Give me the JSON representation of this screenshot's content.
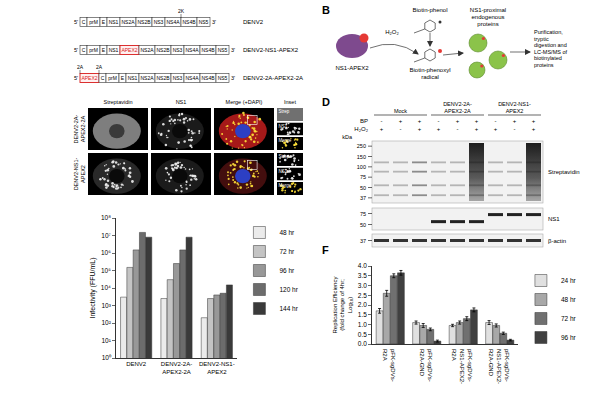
{
  "panels": {
    "A": {
      "ends": [
        "5'",
        "3'"
      ],
      "highlight": "APEX2",
      "constructs": [
        {
          "name": "DENV2",
          "segments": [
            "C",
            "prM",
            "E",
            "NS1",
            "NS2A",
            "NS2B",
            "NS3",
            "NS4A",
            "NS4B",
            "NS5"
          ],
          "marks": [
            {
              "label": "2K",
              "after": "NS4A"
            }
          ]
        },
        {
          "name": "DENV2-NS1-APEX2",
          "segments": [
            "C",
            "prM",
            "E",
            "NS1",
            "APEX2",
            "NS2A",
            "NS2B",
            "NS3",
            "NS4A",
            "NS4B",
            "NS5"
          ]
        },
        {
          "name": "DENV2-2A-APEX2-2A",
          "segments": [
            "APEX2",
            "C",
            "prM",
            "E",
            "NS1",
            "NS2A",
            "NS2B",
            "NS3",
            "NS4A",
            "NS4B",
            "NS5"
          ],
          "marks": [
            {
              "label": "2A",
              "before": "APEX2"
            },
            {
              "label": "2A",
              "after": "APEX2"
            }
          ]
        }
      ]
    },
    "B": {
      "letter": "B",
      "enzyme": "NS1-APEX2",
      "oxidant": "H₂O₂",
      "substrate": "Biotin-phenol",
      "radical": "Biotin-phenoxyl radical",
      "targets": "NS1-proximal endogenous proteins",
      "workflow": "Purification, tryptic digestion and LC-MS/MS of biotinylated proteins"
    },
    "C": {
      "columns": [
        "Streptavidin",
        "NS1",
        "Merge (+DAPI)",
        "Inset"
      ],
      "rows": [
        "DENV2-2A-APEX2-2A",
        "DENV2-NS1-APEX2"
      ],
      "inset_labels": [
        "Strep",
        "NS1",
        "Merge"
      ]
    },
    "D": {
      "letter": "D",
      "groups": [
        "Mock",
        "DENV2-2A-APEX2-2A",
        "DENV2-NS1-APEX2"
      ],
      "treatments": [
        {
          "label": "BP",
          "signs": [
            "-",
            "+",
            "+",
            "-",
            "+",
            "+",
            "-",
            "+",
            "+"
          ]
        },
        {
          "label": "H₂O₂",
          "signs": [
            "+",
            "-",
            "+",
            "+",
            "-",
            "+",
            "+",
            "-",
            "+"
          ]
        }
      ],
      "unit": "kDa",
      "blots": [
        {
          "label": "Streptavidin",
          "markers": [
            250,
            150,
            100,
            75,
            50,
            37
          ]
        },
        {
          "label": "NS1",
          "markers": [
            75,
            50
          ]
        },
        {
          "label": "β-actin",
          "markers": [
            37
          ]
        }
      ]
    },
    "F": {
      "letter": "F"
    }
  },
  "chart_data": [
    {
      "type": "bar",
      "ylabel": "Infectivity (FFU/mL)",
      "categories": [
        "DENV2",
        "DENV2-2A-APEX2-2A",
        "DENV2-NS1-APEX2"
      ],
      "series": [
        {
          "name": "48 hr",
          "color": "#ebebeb",
          "values": [
            3000,
            2500,
            200
          ]
        },
        {
          "name": "72 hr",
          "color": "#c4c4c4",
          "values": [
            150000,
            30000,
            2500
          ]
        },
        {
          "name": "96 hr",
          "color": "#989898",
          "values": [
            1500000,
            250000,
            4000
          ]
        },
        {
          "name": "120 hr",
          "color": "#6c6c6c",
          "values": [
            15000000,
            1500000,
            5000
          ]
        },
        {
          "name": "144 hr",
          "color": "#3a3a3a",
          "values": [
            8000000,
            8000000,
            15000
          ]
        }
      ],
      "log": "y",
      "ylim": [
        1,
        100000000
      ],
      "yticks": [
        {
          "value": 1,
          "label": "10⁰"
        },
        {
          "value": 10,
          "label": "10¹"
        },
        {
          "value": 100,
          "label": "10²"
        },
        {
          "value": 1000,
          "label": "10³"
        },
        {
          "value": 10000,
          "label": "10⁴"
        },
        {
          "value": 100000,
          "label": "10⁵"
        },
        {
          "value": 1000000,
          "label": "10⁶"
        },
        {
          "value": 10000000,
          "label": "10⁷"
        },
        {
          "value": 100000000,
          "label": "10⁸"
        }
      ],
      "grid": false,
      "legend": "right"
    },
    {
      "type": "bar",
      "ylabel": "Replication Efficiency (fold change of 4hr; Log₁₀)",
      "categories": [
        "pFK-sgDVs-R2A",
        "pFK-sgDVs-R2A-GND",
        "pFK-sgDVs-NS1-APEX2-R2A",
        "pFK-sgDVs-NS1-APEX2-R2A-GND"
      ],
      "series": [
        {
          "name": "24 hr",
          "color": "#e0e0e0",
          "values": [
            1.7,
            1.1,
            0.95,
            1.1
          ],
          "errors": [
            0.12,
            0.08,
            0.06,
            0.1
          ]
        },
        {
          "name": "48 hr",
          "color": "#a8a8a8",
          "values": [
            2.6,
            0.95,
            1.1,
            0.95
          ],
          "errors": [
            0.15,
            0.1,
            0.08,
            0.08
          ]
        },
        {
          "name": "72 hr",
          "color": "#707070",
          "values": [
            3.5,
            0.75,
            1.3,
            0.55
          ],
          "errors": [
            0.1,
            0.07,
            0.1,
            0.06
          ]
        },
        {
          "name": "96 hr",
          "color": "#404040",
          "values": [
            3.65,
            0.15,
            1.75,
            0.2
          ],
          "errors": [
            0.12,
            0.05,
            0.1,
            0.04
          ]
        }
      ],
      "ylim": [
        0,
        4
      ],
      "yticks": [
        {
          "value": 0,
          "label": "0.0"
        },
        0.5,
        {
          "value": 1,
          "label": "1.0"
        },
        1.5,
        {
          "value": 2,
          "label": "2.0"
        },
        2.5,
        {
          "value": 3,
          "label": "3.0"
        },
        3.5,
        {
          "value": 4,
          "label": "4.0"
        }
      ],
      "grid": false,
      "legend": "right"
    }
  ]
}
